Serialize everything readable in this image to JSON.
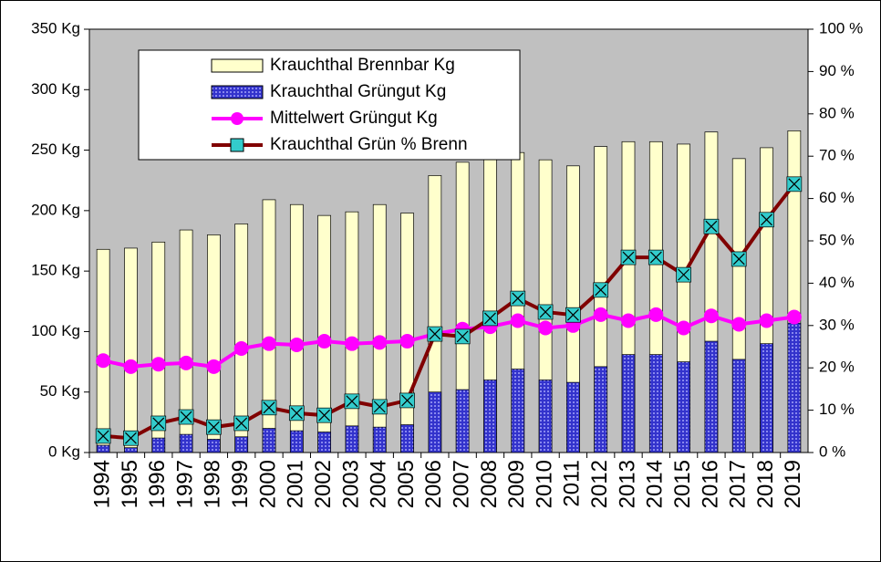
{
  "chart_data": {
    "type": "bar_line",
    "categories": [
      "1994",
      "1995",
      "1996",
      "1997",
      "1998",
      "1999",
      "2000",
      "2001",
      "2002",
      "2003",
      "2004",
      "2005",
      "2006",
      "2007",
      "2008",
      "2009",
      "2010",
      "2011",
      "2012",
      "2013",
      "2014",
      "2015",
      "2016",
      "2017",
      "2018",
      "2019"
    ],
    "series": [
      {
        "name": "Krauchthal Brennbar Kg",
        "type": "bar",
        "color": "#ffffcc",
        "values": [
          168,
          169,
          174,
          184,
          180,
          189,
          209,
          205,
          196,
          199,
          205,
          198,
          229,
          240,
          250,
          248,
          242,
          237,
          253,
          257,
          257,
          255,
          265,
          243,
          252,
          266
        ]
      },
      {
        "name": "Krauchthal Grüngut Kg",
        "type": "bar",
        "color": "#3333cc",
        "values": [
          6,
          4,
          12,
          15,
          11,
          13,
          20,
          18,
          17,
          22,
          21,
          23,
          50,
          52,
          60,
          69,
          60,
          58,
          71,
          81,
          81,
          75,
          92,
          77,
          90,
          107
        ]
      },
      {
        "name": "Mittelwert Grüngut Kg",
        "type": "line",
        "color": "#ff00ff",
        "marker": "circle",
        "values": [
          76,
          71,
          73,
          74,
          71,
          86,
          90,
          89,
          92,
          90,
          91,
          92,
          98,
          102,
          104,
          109,
          103,
          105,
          114,
          109,
          114,
          103,
          113,
          106,
          109,
          112
        ]
      },
      {
        "name": "Krauchthal Grün % Brenn",
        "type": "line",
        "color": "#800000",
        "marker": "x",
        "marker_color": "#33cccc",
        "axis": "y2",
        "values": [
          3.9,
          3.4,
          6.9,
          8.4,
          6.0,
          6.9,
          10.6,
          9.3,
          8.8,
          12.1,
          10.8,
          12.3,
          28.0,
          27.4,
          31.7,
          36.4,
          33.2,
          32.5,
          38.4,
          46.1,
          46.1,
          42.0,
          53.4,
          45.7,
          55.0,
          63.4
        ]
      }
    ],
    "ylim": [
      0,
      350
    ],
    "yticks": [
      {
        "value": 0,
        "label": "0 Kg"
      },
      {
        "value": 50,
        "label": "50 Kg"
      },
      {
        "value": 100,
        "label": "100 Kg"
      },
      {
        "value": 150,
        "label": "150 Kg"
      },
      {
        "value": 200,
        "label": "200 Kg"
      },
      {
        "value": 250,
        "label": "250 Kg"
      },
      {
        "value": 300,
        "label": "300 Kg"
      },
      {
        "value": 350,
        "label": "350 Kg"
      }
    ],
    "y2lim": [
      0,
      100
    ],
    "y2ticks": [
      {
        "value": 0,
        "label": "0 %"
      },
      {
        "value": 10,
        "label": "10 %"
      },
      {
        "value": 20,
        "label": "20 %"
      },
      {
        "value": 30,
        "label": "30 %"
      },
      {
        "value": 40,
        "label": "40 %"
      },
      {
        "value": 50,
        "label": "50 %"
      },
      {
        "value": 60,
        "label": "60 %"
      },
      {
        "value": 70,
        "label": "70 %"
      },
      {
        "value": 80,
        "label": "80 %"
      },
      {
        "value": 90,
        "label": "90 %"
      },
      {
        "value": 100,
        "label": "100 %"
      }
    ],
    "plot_background": "#c0c0c0"
  }
}
